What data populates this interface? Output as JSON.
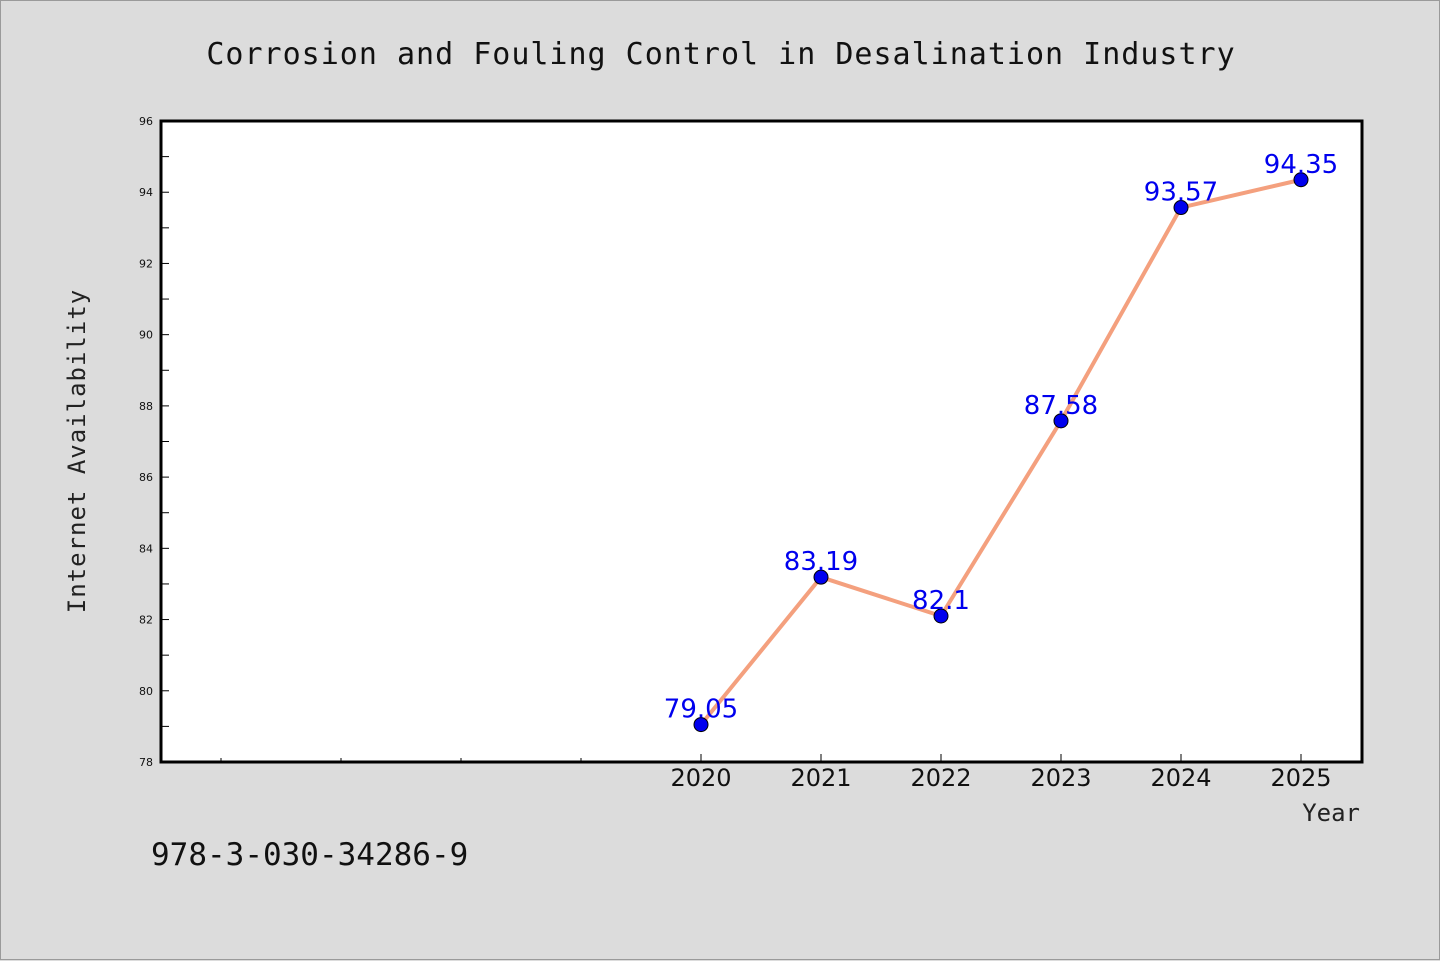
{
  "chart_data": {
    "type": "line",
    "title": "Corrosion and Fouling Control in Desalination Industry",
    "xlabel": "Year",
    "ylabel": "Internet Availability",
    "x": [
      "2020",
      "2021",
      "2022",
      "2023",
      "2024",
      "2025"
    ],
    "values": [
      79.05,
      83.19,
      82.1,
      87.58,
      93.57,
      94.35
    ],
    "data_labels": [
      "79.05",
      "83.19",
      "82.1",
      "87.58",
      "93.57",
      "94.35"
    ],
    "ylim": [
      78,
      96
    ],
    "yticks": [
      "78",
      "80",
      "82",
      "84",
      "86",
      "88",
      "90",
      "92",
      "94",
      "96"
    ],
    "grid": false,
    "legend": "none",
    "colors": {
      "line": "#f4a07e",
      "marker": "#0000ee",
      "label": "#0000ee",
      "plot_bg": "#ffffff",
      "figure_bg": "#dcdcdc"
    }
  },
  "footnote": "978-3-030-34286-9"
}
